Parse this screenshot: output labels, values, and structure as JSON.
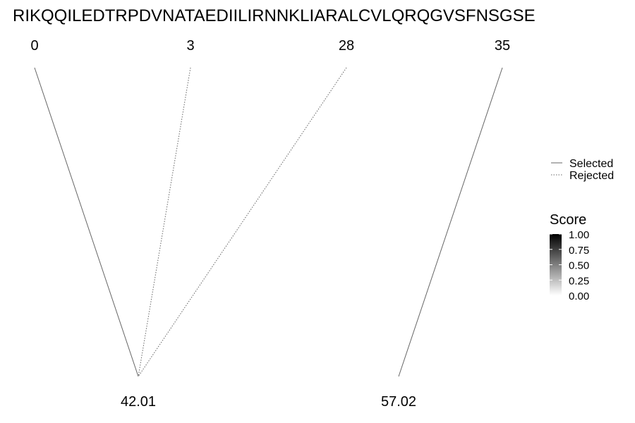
{
  "sequence": "RIKQQILEDTRPDVNATAEDIILIRNNKLIARALCVLQRQGVSFNSGSE",
  "chart_data": {
    "type": "diagram",
    "top_nodes": [
      "0",
      "3",
      "28",
      "35"
    ],
    "bottom_nodes": [
      "42.01",
      "57.02"
    ],
    "links": [
      {
        "from": "0",
        "to": "42.01",
        "status": "Selected"
      },
      {
        "from": "3",
        "to": "42.01",
        "status": "Rejected"
      },
      {
        "from": "28",
        "to": "42.01",
        "status": "Rejected"
      },
      {
        "from": "35",
        "to": "57.02",
        "status": "Selected"
      }
    ]
  },
  "legend": {
    "line_types": [
      {
        "label": "Selected",
        "style": "solid"
      },
      {
        "label": "Rejected",
        "style": "dotted"
      }
    ],
    "score": {
      "title": "Score",
      "ticks": [
        "1.00",
        "0.75",
        "0.50",
        "0.25",
        "0.00"
      ],
      "color_high": "#000000",
      "color_low": "#ffffff"
    }
  },
  "colors": {
    "link": "#666666",
    "text": "#000000"
  }
}
